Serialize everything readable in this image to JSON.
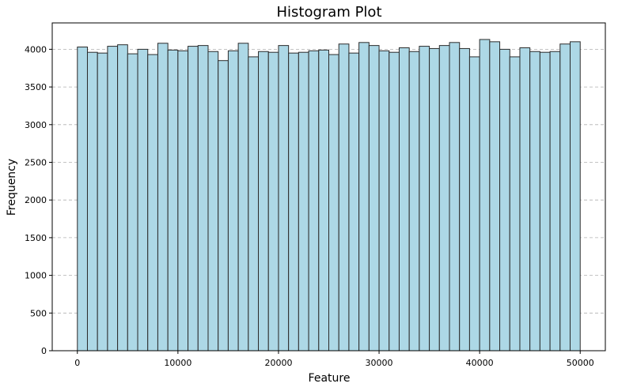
{
  "chart_data": {
    "type": "bar",
    "title": "Histogram Plot",
    "xlabel": "Feature",
    "ylabel": "Frequency",
    "xlim": [
      -2500,
      52500
    ],
    "ylim": [
      0,
      4350
    ],
    "bin_start": 0,
    "bin_width": 1000,
    "values": [
      4030,
      3960,
      3950,
      4040,
      4060,
      3940,
      4000,
      3930,
      4080,
      3990,
      3980,
      4040,
      4050,
      3970,
      3850,
      3980,
      4080,
      3900,
      3970,
      3960,
      4050,
      3950,
      3960,
      3980,
      3990,
      3930,
      4070,
      3950,
      4090,
      4050,
      3980,
      3960,
      4020,
      3970,
      4040,
      4010,
      4050,
      4090,
      4010,
      3900,
      4130,
      4100,
      4000,
      3900,
      4020,
      3970,
      3960,
      3970,
      4070,
      4100
    ],
    "xticks": [
      0,
      10000,
      20000,
      30000,
      40000,
      50000
    ],
    "yticks": [
      0,
      500,
      1000,
      1500,
      2000,
      2500,
      3000,
      3500,
      4000
    ],
    "grid": "y-dashed",
    "colors": {
      "bar_fill": "#add8e6",
      "bar_edge": "#2b2b2b",
      "grid": "#b0b0b0"
    }
  }
}
